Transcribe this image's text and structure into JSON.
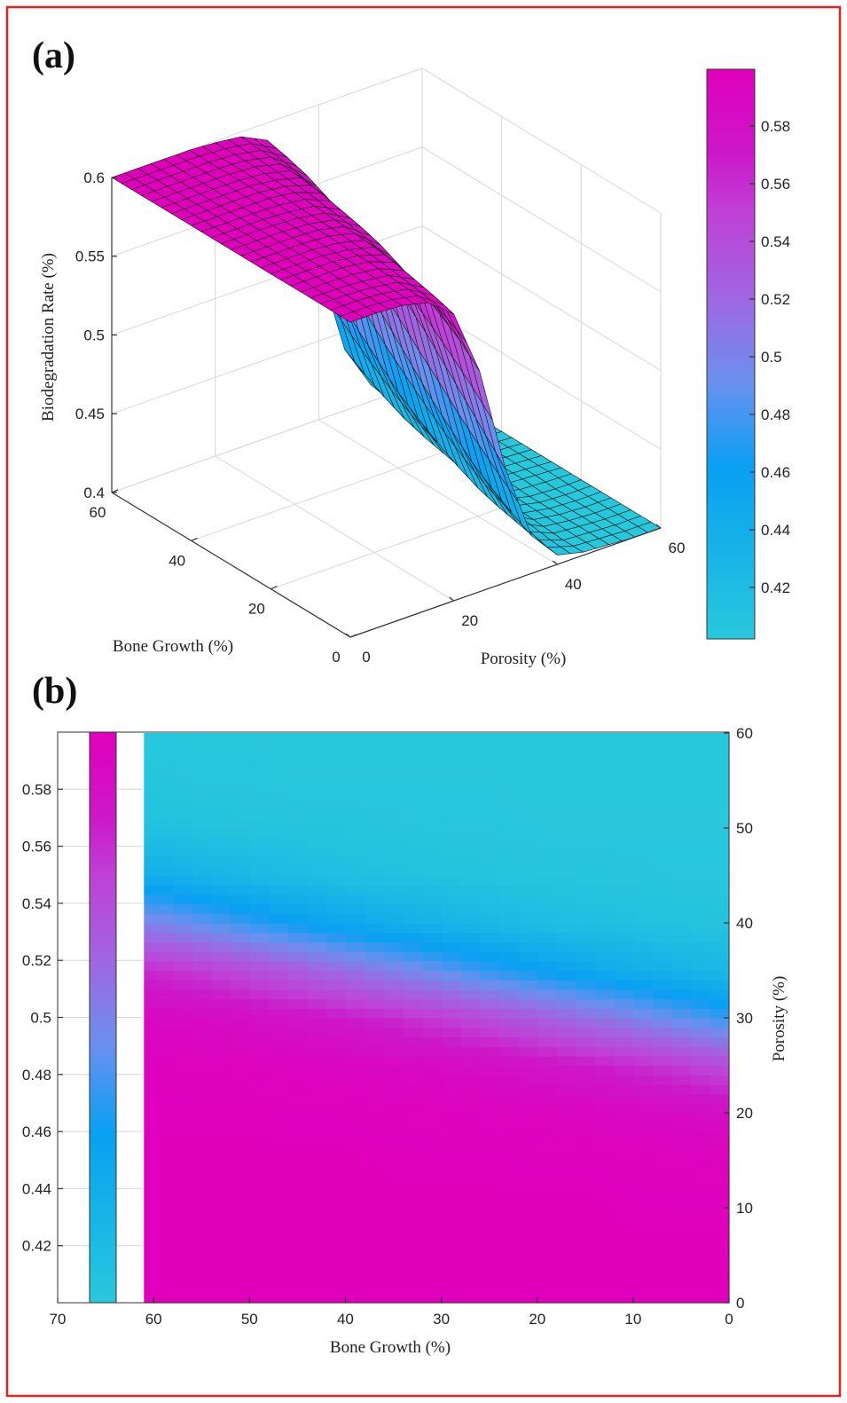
{
  "panels": {
    "a_label": "(a)",
    "b_label": "(b)"
  },
  "colormap": {
    "stops": [
      0.4,
      0.46,
      0.49,
      0.52,
      0.55,
      0.57,
      0.6
    ],
    "colors": [
      "#28c8dc",
      "#08a0f2",
      "#6a90f0",
      "#a066e0",
      "#c040d8",
      "#cc18c8",
      "#e000bc"
    ]
  },
  "frame_color": "#e8221c",
  "chart_data": [
    {
      "type": "surface",
      "zlabel": "Biodegradation Rate (%)",
      "xlabel": "Porosity (%)",
      "ylabel": "Bone Growth (%)",
      "zlim": [
        0.4,
        0.6
      ],
      "xlim": [
        0,
        60
      ],
      "ylim": [
        0,
        60
      ],
      "z_ticks": [
        "0.4",
        "0.45",
        "0.5",
        "0.55",
        "0.6"
      ],
      "porosity_ticks": [
        "0",
        "20",
        "40",
        "60"
      ],
      "bone_ticks": [
        "0",
        "20",
        "40",
        "60"
      ],
      "colorbar_ticks": [
        "0.42",
        "0.44",
        "0.46",
        "0.48",
        "0.5",
        "0.52",
        "0.54",
        "0.56",
        "0.58"
      ],
      "colorbar_range": [
        0.4,
        0.6
      ],
      "grid": true,
      "porosity": [
        0,
        5,
        10,
        15,
        20,
        25,
        30,
        35,
        40,
        45,
        50,
        55,
        60
      ],
      "bone_growth": [
        0,
        5,
        10,
        15,
        20,
        25,
        30,
        35,
        40,
        45,
        50,
        55,
        60
      ],
      "z": [
        [
          0.6,
          0.6,
          0.599,
          0.595,
          0.582,
          0.54,
          0.472,
          0.424,
          0.406,
          0.402,
          0.401,
          0.4,
          0.4
        ],
        [
          0.6,
          0.6,
          0.599,
          0.596,
          0.586,
          0.552,
          0.486,
          0.431,
          0.408,
          0.402,
          0.401,
          0.4,
          0.4
        ],
        [
          0.6,
          0.6,
          0.599,
          0.597,
          0.589,
          0.561,
          0.5,
          0.439,
          0.411,
          0.403,
          0.401,
          0.4,
          0.4
        ],
        [
          0.6,
          0.6,
          0.6,
          0.598,
          0.592,
          0.569,
          0.514,
          0.448,
          0.414,
          0.404,
          0.401,
          0.4,
          0.4
        ],
        [
          0.6,
          0.6,
          0.6,
          0.598,
          0.594,
          0.576,
          0.528,
          0.46,
          0.418,
          0.405,
          0.401,
          0.4,
          0.4
        ],
        [
          0.6,
          0.6,
          0.6,
          0.599,
          0.595,
          0.582,
          0.54,
          0.472,
          0.424,
          0.406,
          0.402,
          0.401,
          0.4
        ],
        [
          0.6,
          0.6,
          0.6,
          0.599,
          0.596,
          0.586,
          0.552,
          0.486,
          0.431,
          0.408,
          0.402,
          0.401,
          0.4
        ],
        [
          0.6,
          0.6,
          0.6,
          0.599,
          0.597,
          0.589,
          0.561,
          0.5,
          0.439,
          0.411,
          0.403,
          0.401,
          0.4
        ],
        [
          0.6,
          0.6,
          0.6,
          0.6,
          0.598,
          0.592,
          0.569,
          0.514,
          0.448,
          0.414,
          0.404,
          0.401,
          0.4
        ],
        [
          0.6,
          0.6,
          0.6,
          0.6,
          0.598,
          0.594,
          0.576,
          0.528,
          0.46,
          0.418,
          0.405,
          0.401,
          0.4
        ],
        [
          0.6,
          0.6,
          0.6,
          0.6,
          0.599,
          0.595,
          0.582,
          0.54,
          0.472,
          0.424,
          0.406,
          0.402,
          0.401
        ],
        [
          0.6,
          0.6,
          0.6,
          0.6,
          0.599,
          0.596,
          0.586,
          0.552,
          0.486,
          0.431,
          0.408,
          0.402,
          0.401
        ],
        [
          0.6,
          0.6,
          0.6,
          0.6,
          0.599,
          0.597,
          0.589,
          0.561,
          0.5,
          0.439,
          0.411,
          0.403,
          0.401
        ]
      ]
    },
    {
      "type": "heatmap",
      "xlabel": "Bone Growth (%)",
      "ylabel": "Porosity (%)",
      "xlim": [
        70,
        0
      ],
      "ylim": [
        0,
        60
      ],
      "x_ticks": [
        "70",
        "60",
        "50",
        "40",
        "30",
        "20",
        "10",
        "0"
      ],
      "y_ticks": [
        "0",
        "10",
        "20",
        "30",
        "40",
        "50",
        "60"
      ],
      "colorbar_ticks": [
        "0.42",
        "0.44",
        "0.46",
        "0.48",
        "0.5",
        "0.52",
        "0.54",
        "0.56",
        "0.58"
      ],
      "colorbar_range": [
        0.4,
        0.6
      ],
      "porosity": [
        0,
        5,
        10,
        15,
        20,
        25,
        30,
        35,
        40,
        45,
        50,
        55,
        60
      ],
      "bone_growth": [
        0,
        5,
        10,
        15,
        20,
        25,
        30,
        35,
        40,
        45,
        50,
        55,
        60
      ],
      "z": [
        [
          0.6,
          0.6,
          0.599,
          0.595,
          0.582,
          0.54,
          0.472,
          0.424,
          0.406,
          0.402,
          0.401,
          0.4,
          0.4
        ],
        [
          0.6,
          0.6,
          0.599,
          0.596,
          0.586,
          0.552,
          0.486,
          0.431,
          0.408,
          0.402,
          0.401,
          0.4,
          0.4
        ],
        [
          0.6,
          0.6,
          0.599,
          0.597,
          0.589,
          0.561,
          0.5,
          0.439,
          0.411,
          0.403,
          0.401,
          0.4,
          0.4
        ],
        [
          0.6,
          0.6,
          0.6,
          0.598,
          0.592,
          0.569,
          0.514,
          0.448,
          0.414,
          0.404,
          0.401,
          0.4,
          0.4
        ],
        [
          0.6,
          0.6,
          0.6,
          0.598,
          0.594,
          0.576,
          0.528,
          0.46,
          0.418,
          0.405,
          0.401,
          0.4,
          0.4
        ],
        [
          0.6,
          0.6,
          0.6,
          0.599,
          0.595,
          0.582,
          0.54,
          0.472,
          0.424,
          0.406,
          0.402,
          0.401,
          0.4
        ],
        [
          0.6,
          0.6,
          0.6,
          0.599,
          0.596,
          0.586,
          0.552,
          0.486,
          0.431,
          0.408,
          0.402,
          0.401,
          0.4
        ],
        [
          0.6,
          0.6,
          0.6,
          0.599,
          0.597,
          0.589,
          0.561,
          0.5,
          0.439,
          0.411,
          0.403,
          0.401,
          0.4
        ],
        [
          0.6,
          0.6,
          0.6,
          0.6,
          0.598,
          0.592,
          0.569,
          0.514,
          0.448,
          0.414,
          0.404,
          0.401,
          0.4
        ],
        [
          0.6,
          0.6,
          0.6,
          0.6,
          0.598,
          0.594,
          0.576,
          0.528,
          0.46,
          0.418,
          0.405,
          0.401,
          0.4
        ],
        [
          0.6,
          0.6,
          0.6,
          0.6,
          0.599,
          0.595,
          0.582,
          0.54,
          0.472,
          0.424,
          0.406,
          0.402,
          0.401
        ],
        [
          0.6,
          0.6,
          0.6,
          0.6,
          0.599,
          0.596,
          0.586,
          0.552,
          0.486,
          0.431,
          0.408,
          0.402,
          0.401
        ],
        [
          0.6,
          0.6,
          0.6,
          0.6,
          0.599,
          0.597,
          0.589,
          0.561,
          0.5,
          0.439,
          0.411,
          0.403,
          0.401
        ]
      ]
    }
  ]
}
